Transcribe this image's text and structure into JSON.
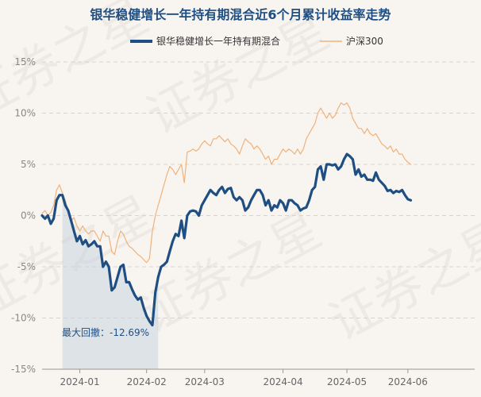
{
  "chart_data": {
    "type": "line",
    "title": "银华稳健增长一年持有期混合近6个月累计收益率走势",
    "watermark": "证券之星",
    "colors": {
      "fund": "#1f4f82",
      "index": "#f0b27a",
      "drawdown": "#c9d3de"
    },
    "legend": {
      "placement": "top",
      "fund": "银华稳健增长一年持有期混合",
      "index": "沪深300"
    },
    "ylim": [
      -15,
      15
    ],
    "yticks": [
      -15,
      -10,
      -5,
      0,
      5,
      10,
      15
    ],
    "ytick_labels": [
      "-15%",
      "-10%",
      "-5%",
      "0%",
      "5%",
      "10%",
      "15%"
    ],
    "xticks": [
      {
        "label": "2024-01",
        "x": 13
      },
      {
        "label": "2024-02",
        "x": 36
      },
      {
        "label": "2024-03",
        "x": 56
      },
      {
        "label": "2024-04",
        "x": 83
      },
      {
        "label": "2024-05",
        "x": 105
      },
      {
        "label": "2024-06",
        "x": 126
      }
    ],
    "x_count": 150,
    "grid": "horizontal dashed",
    "drawdown": {
      "label": "最大回撤：-12.69%",
      "start_x": 7,
      "end_x": 40
    },
    "series": [
      {
        "name": "银华稳健增长一年持有期混合",
        "key": "fund",
        "points": [
          [
            0,
            0
          ],
          [
            1,
            -0.3
          ],
          [
            2,
            0.0
          ],
          [
            3,
            -0.8
          ],
          [
            4,
            -0.3
          ],
          [
            5,
            1.5
          ],
          [
            6,
            2.0
          ],
          [
            7,
            2.0
          ],
          [
            8,
            1.0
          ],
          [
            9,
            0.5
          ],
          [
            10,
            -0.5
          ],
          [
            11,
            -1.5
          ],
          [
            12,
            -2.5
          ],
          [
            13,
            -2.0
          ],
          [
            14,
            -2.8
          ],
          [
            15,
            -2.4
          ],
          [
            16,
            -3.0
          ],
          [
            17,
            -2.8
          ],
          [
            18,
            -2.5
          ],
          [
            19,
            -3.0
          ],
          [
            20,
            -3.0
          ],
          [
            21,
            -5.0
          ],
          [
            22,
            -4.5
          ],
          [
            23,
            -5.0
          ],
          [
            24,
            -7.3
          ],
          [
            25,
            -7.0
          ],
          [
            26,
            -6.0
          ],
          [
            27,
            -5.0
          ],
          [
            28,
            -4.8
          ],
          [
            29,
            -6.5
          ],
          [
            30,
            -6.5
          ],
          [
            31,
            -7.2
          ],
          [
            32,
            -7.8
          ],
          [
            33,
            -8.2
          ],
          [
            34,
            -8.0
          ],
          [
            35,
            -9.0
          ],
          [
            36,
            -9.8
          ],
          [
            37,
            -10.3
          ],
          [
            38,
            -10.7
          ],
          [
            39,
            -7.5
          ],
          [
            40,
            -6.0
          ],
          [
            41,
            -5.0
          ],
          [
            42,
            -4.8
          ],
          [
            43,
            -4.5
          ],
          [
            44,
            -3.5
          ],
          [
            45,
            -2.5
          ],
          [
            46,
            -1.8
          ],
          [
            47,
            -2.0
          ],
          [
            48,
            -0.5
          ],
          [
            49,
            -2.2
          ],
          [
            50,
            0.0
          ],
          [
            51,
            0.4
          ],
          [
            52,
            0.5
          ],
          [
            53,
            0.4
          ],
          [
            54,
            0.0
          ],
          [
            55,
            1.0
          ],
          [
            56,
            1.5
          ],
          [
            57,
            2.0
          ],
          [
            58,
            2.5
          ],
          [
            59,
            2.2
          ],
          [
            60,
            2.0
          ],
          [
            61,
            2.5
          ],
          [
            62,
            2.8
          ],
          [
            63,
            2.2
          ],
          [
            64,
            2.6
          ],
          [
            65,
            2.7
          ],
          [
            66,
            1.8
          ],
          [
            67,
            1.5
          ],
          [
            68,
            1.8
          ],
          [
            69,
            1.5
          ],
          [
            70,
            0.5
          ],
          [
            71,
            0.8
          ],
          [
            72,
            1.5
          ],
          [
            73,
            2.0
          ],
          [
            74,
            2.5
          ],
          [
            75,
            2.5
          ],
          [
            76,
            2.0
          ],
          [
            77,
            1.0
          ],
          [
            78,
            1.5
          ],
          [
            79,
            0.5
          ],
          [
            80,
            1.0
          ],
          [
            81,
            0.8
          ],
          [
            82,
            1.5
          ],
          [
            83,
            1.2
          ],
          [
            84,
            0.5
          ],
          [
            85,
            1.5
          ],
          [
            86,
            1.5
          ],
          [
            87,
            1.2
          ],
          [
            88,
            1.0
          ],
          [
            89,
            0.5
          ],
          [
            90,
            0.7
          ],
          [
            91,
            0.8
          ],
          [
            92,
            1.5
          ],
          [
            93,
            2.5
          ],
          [
            94,
            2.8
          ],
          [
            95,
            4.5
          ],
          [
            96,
            4.8
          ],
          [
            97,
            3.5
          ],
          [
            98,
            5.0
          ],
          [
            99,
            5.0
          ],
          [
            100,
            4.9
          ],
          [
            101,
            5.0
          ],
          [
            102,
            4.5
          ],
          [
            103,
            4.8
          ],
          [
            104,
            5.5
          ],
          [
            105,
            6.0
          ],
          [
            106,
            5.8
          ],
          [
            107,
            5.5
          ],
          [
            108,
            4.0
          ],
          [
            109,
            4.5
          ],
          [
            110,
            3.8
          ],
          [
            111,
            4.0
          ],
          [
            112,
            3.5
          ],
          [
            113,
            3.5
          ],
          [
            114,
            3.4
          ],
          [
            115,
            4.2
          ],
          [
            116,
            3.5
          ],
          [
            117,
            3.2
          ],
          [
            118,
            2.9
          ],
          [
            119,
            2.4
          ],
          [
            120,
            2.5
          ],
          [
            121,
            2.2
          ],
          [
            122,
            2.4
          ],
          [
            123,
            2.3
          ],
          [
            124,
            2.5
          ],
          [
            125,
            2.0
          ],
          [
            126,
            1.6
          ],
          [
            127,
            1.5
          ]
        ]
      },
      {
        "name": "沪深300",
        "key": "index",
        "points": [
          [
            0,
            0.2
          ],
          [
            1,
            0.5
          ],
          [
            2,
            0.0
          ],
          [
            3,
            0.3
          ],
          [
            4,
            1.0
          ],
          [
            5,
            2.5
          ],
          [
            6,
            3.0
          ],
          [
            7,
            2.2
          ],
          [
            8,
            1.5
          ],
          [
            9,
            0.5
          ],
          [
            10,
            -0.5
          ],
          [
            11,
            -0.2
          ],
          [
            12,
            -1.0
          ],
          [
            13,
            -1.5
          ],
          [
            14,
            -1.0
          ],
          [
            15,
            -1.5
          ],
          [
            16,
            -1.8
          ],
          [
            17,
            -1.5
          ],
          [
            18,
            -1.5
          ],
          [
            19,
            -2.0
          ],
          [
            20,
            -2.5
          ],
          [
            21,
            -1.5
          ],
          [
            22,
            -2.0
          ],
          [
            23,
            -2.0
          ],
          [
            24,
            -3.5
          ],
          [
            25,
            -3.8
          ],
          [
            26,
            -2.5
          ],
          [
            27,
            -1.5
          ],
          [
            28,
            -1.8
          ],
          [
            29,
            -2.5
          ],
          [
            30,
            -3.0
          ],
          [
            31,
            -3.2
          ],
          [
            32,
            -3.5
          ],
          [
            33,
            -3.8
          ],
          [
            34,
            -4.0
          ],
          [
            35,
            -4.3
          ],
          [
            36,
            -4.6
          ],
          [
            37,
            -4.2
          ],
          [
            38,
            -1.5
          ],
          [
            39,
            0.0
          ],
          [
            40,
            1.0
          ],
          [
            41,
            2.0
          ],
          [
            42,
            3.0
          ],
          [
            43,
            4.0
          ],
          [
            44,
            4.8
          ],
          [
            45,
            4.5
          ],
          [
            46,
            4.0
          ],
          [
            47,
            4.5
          ],
          [
            48,
            5.0
          ],
          [
            49,
            3.2
          ],
          [
            50,
            6.2
          ],
          [
            51,
            6.3
          ],
          [
            52,
            6.5
          ],
          [
            53,
            6.3
          ],
          [
            54,
            6.5
          ],
          [
            55,
            7.0
          ],
          [
            56,
            7.3
          ],
          [
            57,
            7.0
          ],
          [
            58,
            6.8
          ],
          [
            59,
            7.5
          ],
          [
            60,
            7.5
          ],
          [
            61,
            7.8
          ],
          [
            62,
            7.5
          ],
          [
            63,
            7.2
          ],
          [
            64,
            7.5
          ],
          [
            65,
            7.0
          ],
          [
            66,
            6.8
          ],
          [
            67,
            6.5
          ],
          [
            68,
            6.0
          ],
          [
            69,
            6.8
          ],
          [
            70,
            7.5
          ],
          [
            71,
            7.2
          ],
          [
            72,
            7.0
          ],
          [
            73,
            6.5
          ],
          [
            74,
            6.8
          ],
          [
            75,
            6.5
          ],
          [
            76,
            6.0
          ],
          [
            77,
            5.5
          ],
          [
            78,
            5.8
          ],
          [
            79,
            5.0
          ],
          [
            80,
            5.5
          ],
          [
            81,
            5.5
          ],
          [
            82,
            6.0
          ],
          [
            83,
            6.5
          ],
          [
            84,
            6.2
          ],
          [
            85,
            6.5
          ],
          [
            86,
            6.3
          ],
          [
            87,
            6.0
          ],
          [
            88,
            6.5
          ],
          [
            89,
            6.0
          ],
          [
            90,
            6.5
          ],
          [
            91,
            7.5
          ],
          [
            92,
            8.0
          ],
          [
            93,
            8.5
          ],
          [
            94,
            9.0
          ],
          [
            95,
            10.0
          ],
          [
            96,
            10.5
          ],
          [
            97,
            10.0
          ],
          [
            98,
            9.5
          ],
          [
            99,
            10.0
          ],
          [
            100,
            9.5
          ],
          [
            101,
            9.8
          ],
          [
            102,
            10.5
          ],
          [
            103,
            11.0
          ],
          [
            104,
            10.8
          ],
          [
            105,
            11.0
          ],
          [
            106,
            10.5
          ],
          [
            107,
            9.5
          ],
          [
            108,
            9.0
          ],
          [
            109,
            8.5
          ],
          [
            110,
            8.5
          ],
          [
            111,
            8.0
          ],
          [
            112,
            8.5
          ],
          [
            113,
            8.0
          ],
          [
            114,
            7.8
          ],
          [
            115,
            8.0
          ],
          [
            116,
            7.5
          ],
          [
            117,
            7.0
          ],
          [
            118,
            6.8
          ],
          [
            119,
            6.5
          ],
          [
            120,
            6.8
          ],
          [
            121,
            6.2
          ],
          [
            122,
            6.5
          ],
          [
            123,
            6.0
          ],
          [
            124,
            6.0
          ],
          [
            125,
            5.5
          ],
          [
            126,
            5.2
          ],
          [
            127,
            5.0
          ]
        ]
      }
    ]
  }
}
